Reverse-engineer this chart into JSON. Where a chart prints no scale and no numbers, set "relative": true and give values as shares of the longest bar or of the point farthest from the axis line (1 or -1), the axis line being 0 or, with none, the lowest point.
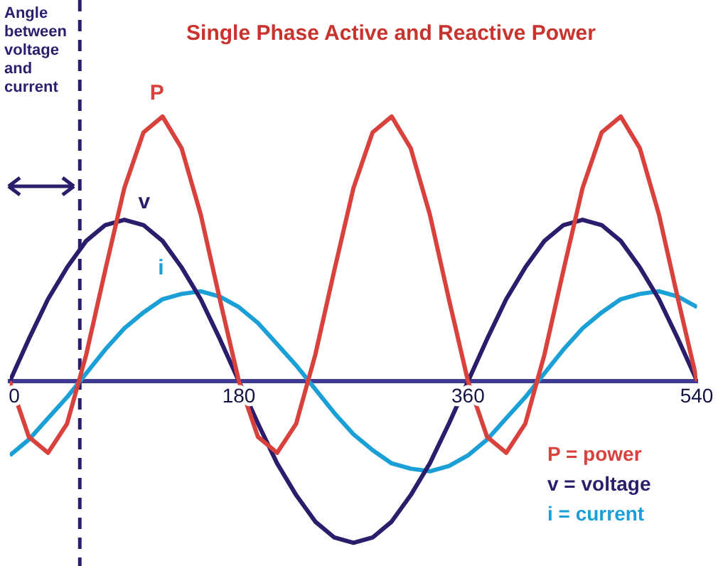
{
  "chart_data": {
    "type": "line",
    "title": "Single Phase Active and Reactive Power",
    "relative": true,
    "marker": "none",
    "x": [
      0,
      15,
      30,
      45,
      60,
      75,
      90,
      105,
      120,
      135,
      150,
      165,
      180,
      195,
      210,
      225,
      240,
      255,
      270,
      285,
      300,
      315,
      330,
      345,
      360,
      375,
      390,
      405,
      420,
      435,
      450,
      465,
      480,
      495,
      510,
      525,
      540
    ],
    "xlim": [
      0,
      540
    ],
    "xticks": [
      0,
      180,
      360,
      540
    ],
    "series": [
      {
        "name": "P",
        "color": "#d9413c",
        "values": [
          0,
          -0.21,
          -0.27,
          -0.16,
          0.1,
          0.42,
          0.73,
          0.94,
          1.0,
          0.88,
          0.63,
          0.31,
          0,
          -0.21,
          -0.27,
          -0.16,
          0.1,
          0.42,
          0.73,
          0.94,
          1.0,
          0.88,
          0.63,
          0.31,
          0,
          -0.21,
          -0.27,
          -0.16,
          0.1,
          0.42,
          0.73,
          0.94,
          1.0,
          0.88,
          0.63,
          0.31,
          0
        ]
      },
      {
        "name": "v",
        "color": "#2b1d6b",
        "values": [
          0,
          0.16,
          0.31,
          0.43,
          0.53,
          0.59,
          0.61,
          0.59,
          0.53,
          0.43,
          0.31,
          0.16,
          0,
          -0.16,
          -0.31,
          -0.43,
          -0.53,
          -0.59,
          -0.61,
          -0.59,
          -0.53,
          -0.43,
          -0.31,
          -0.16,
          0,
          0.16,
          0.31,
          0.43,
          0.53,
          0.59,
          0.61,
          0.59,
          0.53,
          0.43,
          0.31,
          0.16,
          0
        ]
      },
      {
        "name": "i",
        "color": "#1aa0d6",
        "values": [
          -0.28,
          -0.22,
          -0.14,
          -0.06,
          0.03,
          0.12,
          0.2,
          0.26,
          0.31,
          0.33,
          0.34,
          0.32,
          0.28,
          0.22,
          0.14,
          0.06,
          -0.03,
          -0.12,
          -0.2,
          -0.26,
          -0.31,
          -0.33,
          -0.34,
          -0.32,
          -0.28,
          -0.22,
          -0.14,
          -0.06,
          0.03,
          0.12,
          0.2,
          0.26,
          0.31,
          0.33,
          0.34,
          0.32,
          0.28
        ]
      }
    ],
    "ref_lines": [
      {
        "axis": "x",
        "value": 55,
        "label": "Angle between voltage and current",
        "color": "#2b1d6b",
        "line_style": "dashed"
      }
    ],
    "annotations": [
      "P = power",
      "v = voltage",
      "i = current"
    ]
  }
}
